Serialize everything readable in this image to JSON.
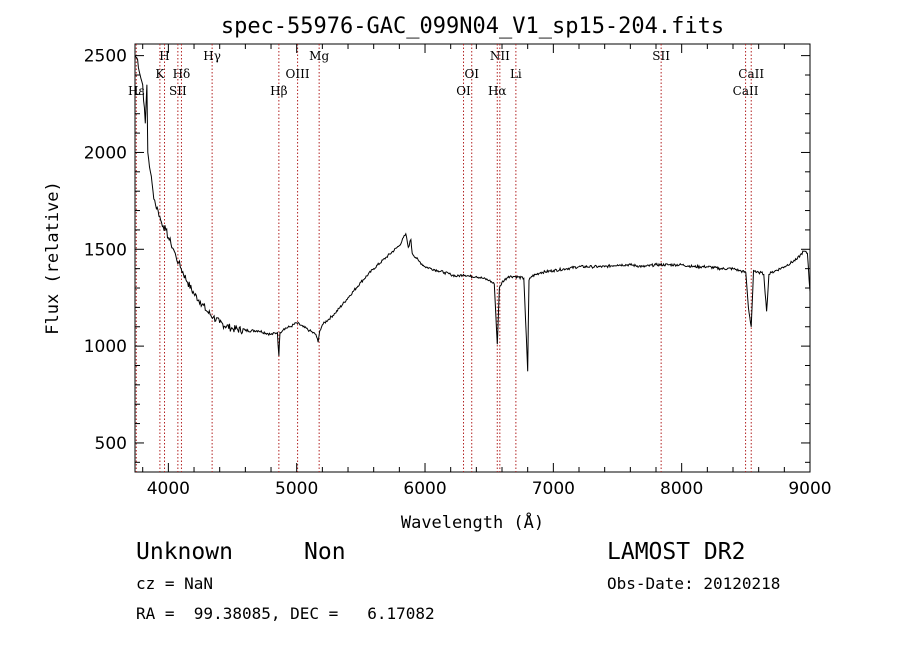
{
  "chart_data": {
    "type": "line",
    "title": "spec-55976-GAC_099N04_V1_sp15-204.fits",
    "xlabel": "Wavelength (Å)",
    "ylabel": "Flux (relative)",
    "xlim": [
      3740,
      9000
    ],
    "ylim": [
      350,
      2560
    ],
    "x_ticks": [
      4000,
      5000,
      6000,
      7000,
      8000,
      9000
    ],
    "y_ticks": [
      500,
      1000,
      1500,
      2000,
      2500
    ],
    "grid": false,
    "legend": "none",
    "line_color": "#000000",
    "marker_color": "#b22222",
    "series": [
      {
        "x": [
          3740,
          3760,
          3780,
          3800,
          3820,
          3833,
          3840,
          3860,
          3880,
          3900,
          3920,
          3940,
          3960,
          3980,
          4000,
          4020,
          4040,
          4060,
          4080,
          4100,
          4150,
          4200,
          4250,
          4300,
          4350,
          4400,
          4500,
          4600,
          4700,
          4800,
          4850,
          4861,
          4870,
          4900,
          4950,
          5000,
          5050,
          5100,
          5150,
          5167,
          5180,
          5200,
          5300,
          5400,
          5500,
          5600,
          5700,
          5800,
          5850,
          5870,
          5890,
          5900,
          5950,
          6000,
          6050,
          6100,
          6150,
          6200,
          6250,
          6300,
          6350,
          6400,
          6450,
          6500,
          6540,
          6563,
          6580,
          6600,
          6650,
          6700,
          6770,
          6790,
          6800,
          6810,
          6830,
          6900,
          7000,
          7100,
          7200,
          7300,
          7400,
          7500,
          7600,
          7700,
          7800,
          7900,
          8000,
          8100,
          8200,
          8300,
          8400,
          8450,
          8500,
          8520,
          8542,
          8560,
          8580,
          8600,
          8620,
          8640,
          8662,
          8680,
          8700,
          8800,
          8900,
          8950,
          8980,
          9000
        ],
        "y": [
          2500,
          2480,
          2400,
          2350,
          2150,
          2350,
          2000,
          1900,
          1800,
          1730,
          1700,
          1650,
          1620,
          1600,
          1560,
          1530,
          1500,
          1460,
          1430,
          1400,
          1330,
          1270,
          1230,
          1180,
          1150,
          1120,
          1090,
          1080,
          1080,
          1060,
          1070,
          950,
          1070,
          1090,
          1100,
          1120,
          1100,
          1080,
          1060,
          1020,
          1080,
          1110,
          1170,
          1250,
          1330,
          1400,
          1460,
          1520,
          1580,
          1510,
          1550,
          1480,
          1440,
          1410,
          1400,
          1390,
          1380,
          1370,
          1360,
          1370,
          1360,
          1360,
          1350,
          1340,
          1320,
          1010,
          1300,
          1330,
          1360,
          1360,
          1350,
          1040,
          870,
          1340,
          1360,
          1380,
          1390,
          1400,
          1410,
          1410,
          1410,
          1420,
          1420,
          1410,
          1420,
          1420,
          1420,
          1410,
          1410,
          1400,
          1400,
          1390,
          1380,
          1200,
          1100,
          1390,
          1380,
          1380,
          1380,
          1370,
          1180,
          1370,
          1380,
          1410,
          1450,
          1490,
          1480,
          1280
        ]
      }
    ],
    "lines": [
      {
        "label": "H",
        "x": 3970,
        "row": 1
      },
      {
        "label": "K",
        "x": 3934,
        "row": 2
      },
      {
        "label": "Hδ",
        "x": 4102,
        "row": 2
      },
      {
        "label": "SII",
        "x": 4074,
        "row": 3
      },
      {
        "label": "Hε",
        "x": 3750,
        "row": 3
      },
      {
        "label": "Hγ",
        "x": 4341,
        "row": 1
      },
      {
        "label": "Hβ",
        "x": 4861,
        "row": 3
      },
      {
        "label": "OIII",
        "x": 5007,
        "row": 2
      },
      {
        "label": "Mg",
        "x": 5175,
        "row": 1
      },
      {
        "label": "NII",
        "x": 6583,
        "row": 1
      },
      {
        "label": "OI",
        "x": 6364,
        "row": 2
      },
      {
        "label": "OI",
        "x": 6300,
        "row": 3
      },
      {
        "label": "Hα",
        "x": 6563,
        "row": 3
      },
      {
        "label": "Li",
        "x": 6708,
        "row": 2
      },
      {
        "label": "SII",
        "x": 7840,
        "row": 1
      },
      {
        "label": "CaII",
        "x": 8542,
        "row": 2
      },
      {
        "label": "CaII",
        "x": 8498,
        "row": 3
      }
    ]
  },
  "info": {
    "object_class": "Unknown",
    "subclass": "Non",
    "cz": "cz = NaN",
    "coords": "RA =  99.38085, DEC =   6.17082",
    "survey": "LAMOST DR2",
    "obs_date": "Obs-Date: 20120218"
  }
}
